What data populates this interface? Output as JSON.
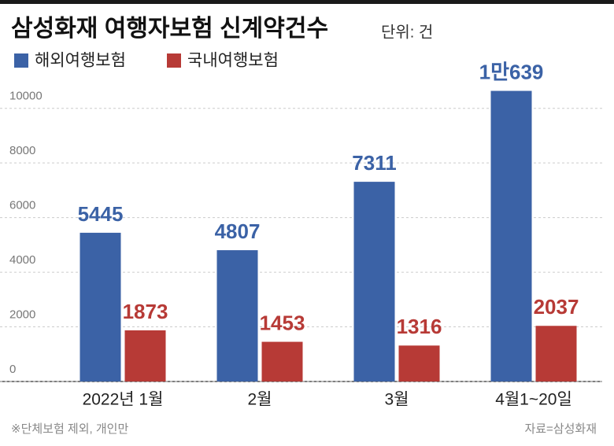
{
  "chart_data": {
    "type": "bar",
    "title": "삼성화재 여행자보험 신계약건수",
    "subtitle": "단위: 건",
    "categories": [
      "2022년 1월",
      "2월",
      "3월",
      "4월1~20일"
    ],
    "series": [
      {
        "name": "해외여행보험",
        "color": "#3b62a6",
        "values": [
          5445,
          4807,
          7311,
          10639
        ],
        "value_labels": [
          "5445",
          "4807",
          "7311",
          "1만639"
        ]
      },
      {
        "name": "국내여행보험",
        "color": "#b73a36",
        "values": [
          1873,
          1453,
          1316,
          2037
        ]
      }
    ],
    "ylim": [
      0,
      11000
    ],
    "yticks": [
      0,
      2000,
      4000,
      6000,
      8000,
      10000
    ],
    "grid": true,
    "footnote": "※단체보험 제외, 개인만",
    "source": "자료=삼성화재"
  }
}
